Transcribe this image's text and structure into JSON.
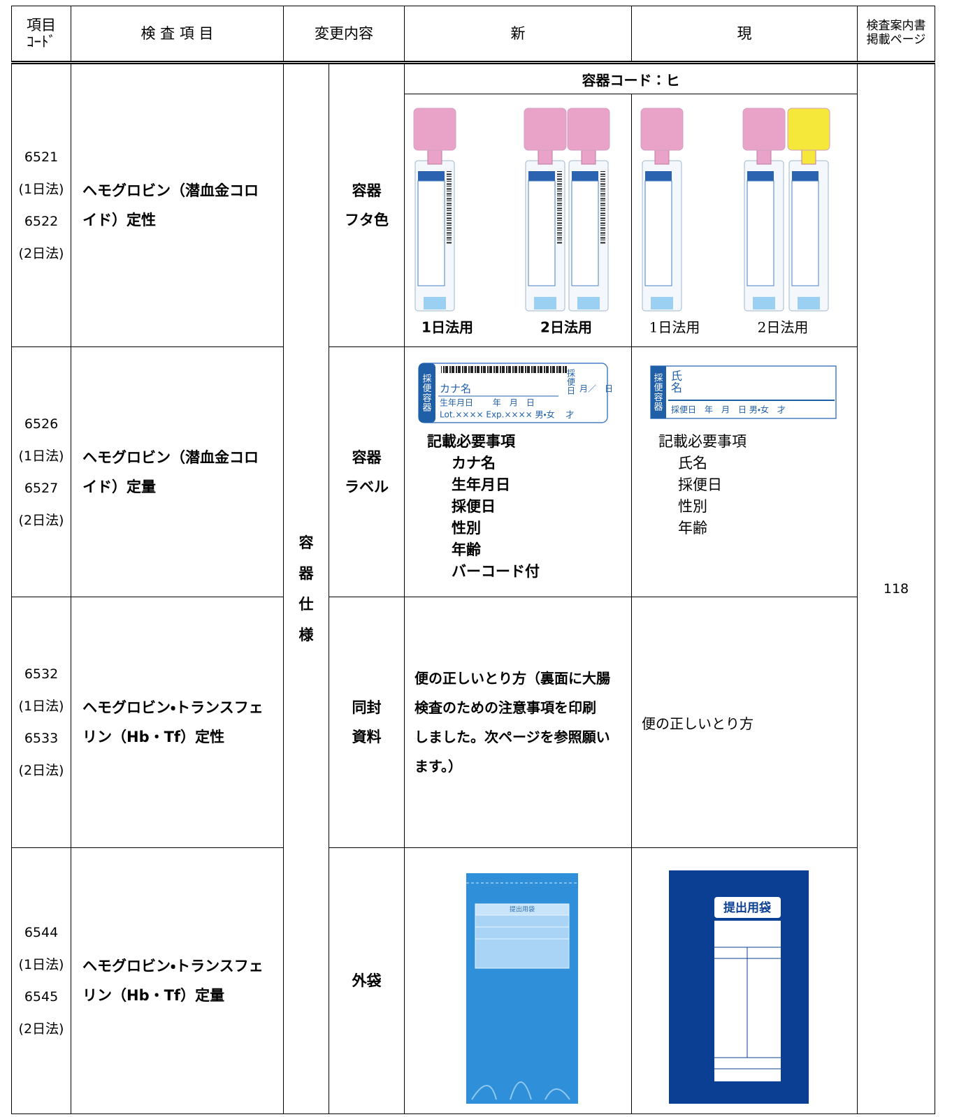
{
  "header": {
    "code": "項目\nｺｰﾄﾞ",
    "item": "検 査 項 目",
    "change": "変更内容",
    "new": "新",
    "current": "現",
    "page": "検査案内書\n掲載ページ"
  },
  "category": "容\n器\n仕\n様",
  "page": "118",
  "container_code": "容器コード：ヒ",
  "rows": [
    {
      "codes": [
        "6521",
        "(1日法)",
        "6522",
        "(2日法)"
      ],
      "item": "ヘモグロビン（潜血金コロイド）定性",
      "change": "容器\nフタ色"
    },
    {
      "codes": [
        "6526",
        "(1日法)",
        "6527",
        "(2日法)"
      ],
      "item": "ヘモグロビン（潜血金コロイド）定量",
      "change": "容器\nラベル"
    },
    {
      "codes": [
        "6532",
        "(1日法)",
        "6533",
        "(2日法)"
      ],
      "item": "ヘモグロビン・トランスフェリン（Hb・Tf）定性",
      "change": "同封\n資料"
    },
    {
      "codes": [
        "6544",
        "(1日法)",
        "6545",
        "(2日法)"
      ],
      "item": "ヘモグロビン・トランスフェリン（Hb・Tf）定量",
      "change": "外袋"
    }
  ],
  "cap": {
    "new_captions": [
      "1日法用",
      "2日法用"
    ],
    "current_captions": [
      "1日法用",
      "2日法用"
    ]
  },
  "label": {
    "new_image": {
      "side": "採\n便\n容\n器",
      "name": "カナ名",
      "dob": "生年月日　　 年　月　日",
      "lot": "Lot.××××  Exp.××××  男・女　 才",
      "date": "採\n便\n日",
      "md": "月／　日"
    },
    "new_heading": "記載必要事項",
    "new_items": [
      "カナ名",
      "生年月日",
      "採便日",
      "性別",
      "年齢",
      "バーコード付"
    ],
    "current_image": {
      "side": "採\n便\n容\n器",
      "name": "氏\n名",
      "row": "採便日　年　月　日 男・女　才"
    },
    "current_heading": "記載必要事項",
    "current_items": [
      "氏名",
      "採便日",
      "性別",
      "年齢"
    ]
  },
  "leaflet": {
    "new": [
      "便の正しいとり方（裏面に大腸",
      "検査のための注意事項を印刷",
      "しました。次ページを参照願い",
      "ます。）"
    ],
    "current": "便の正しいとり方"
  },
  "bag": {
    "new_title": "提出用袋",
    "current_title": "提出用袋"
  }
}
